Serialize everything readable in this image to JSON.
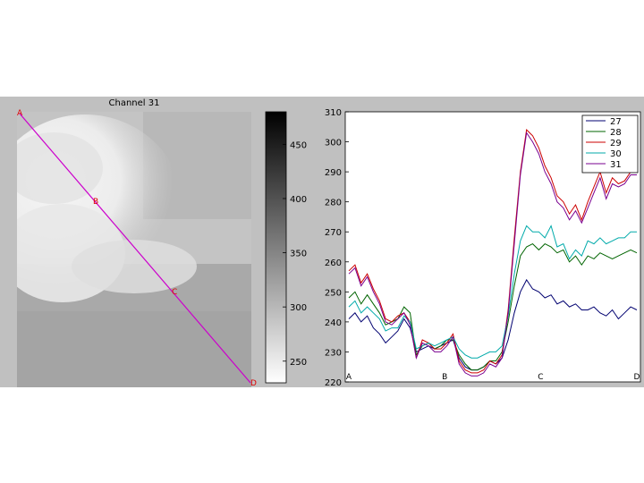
{
  "chart_data": [
    {
      "type": "heatmap",
      "title": "Channel 31",
      "colorbar": {
        "ticks": [
          250,
          300,
          350,
          400,
          450
        ],
        "range": [
          230,
          480
        ],
        "colormap": "gray-reversed"
      },
      "transect_points": [
        "A",
        "B",
        "C",
        "D"
      ],
      "transect_color": "#cc00cc",
      "point_label_color": "#dd0000"
    },
    {
      "type": "line",
      "ylim": [
        220,
        310
      ],
      "yticks": [
        "220",
        "230",
        "240",
        "250",
        "260",
        "270",
        "280",
        "290",
        "300",
        "310"
      ],
      "xticks": [
        "A",
        "B",
        "C",
        "D"
      ],
      "legend_position": "top-right",
      "series": [
        {
          "name": "27",
          "color": "#000070",
          "values": [
            241,
            243,
            240,
            242,
            238,
            236,
            233,
            235,
            237,
            241,
            238,
            230,
            231,
            232,
            231,
            232,
            233,
            234,
            228,
            225,
            224,
            224,
            225,
            227,
            226,
            228,
            234,
            243,
            250,
            254,
            251,
            250,
            248,
            249,
            246,
            247,
            245,
            246,
            244,
            244,
            245,
            243,
            242,
            244,
            241,
            243,
            245,
            244
          ]
        },
        {
          "name": "28",
          "color": "#006400",
          "values": [
            248,
            250,
            246,
            249,
            246,
            243,
            239,
            240,
            241,
            245,
            243,
            229,
            232,
            233,
            231,
            232,
            234,
            234,
            229,
            226,
            224,
            224,
            225,
            227,
            227,
            230,
            240,
            252,
            262,
            265,
            266,
            264,
            266,
            265,
            263,
            264,
            260,
            262,
            259,
            262,
            261,
            263,
            262,
            261,
            262,
            263,
            264,
            263
          ]
        },
        {
          "name": "29",
          "color": "#cc0000",
          "values": [
            257,
            259,
            253,
            256,
            251,
            247,
            241,
            240,
            242,
            243,
            240,
            228,
            234,
            233,
            231,
            231,
            233,
            236,
            227,
            224,
            223,
            223,
            224,
            227,
            226,
            229,
            244,
            268,
            290,
            304,
            302,
            298,
            292,
            288,
            282,
            280,
            276,
            279,
            274,
            280,
            285,
            290,
            283,
            288,
            286,
            287,
            290,
            290
          ]
        },
        {
          "name": "30",
          "color": "#00aaaa",
          "values": [
            245,
            247,
            243,
            245,
            243,
            241,
            237,
            238,
            238,
            242,
            240,
            231,
            232,
            233,
            232,
            233,
            234,
            235,
            231,
            229,
            228,
            228,
            229,
            230,
            230,
            232,
            242,
            256,
            267,
            272,
            270,
            270,
            268,
            272,
            265,
            266,
            261,
            264,
            262,
            267,
            266,
            268,
            266,
            267,
            268,
            268,
            270,
            270
          ]
        },
        {
          "name": "31",
          "color": "#7a0090",
          "values": [
            256,
            258,
            252,
            255,
            250,
            246,
            240,
            239,
            241,
            243,
            239,
            228,
            233,
            232,
            230,
            230,
            232,
            235,
            226,
            223,
            222,
            222,
            223,
            226,
            225,
            228,
            243,
            266,
            289,
            303,
            300,
            296,
            290,
            286,
            280,
            278,
            274,
            277,
            273,
            278,
            283,
            288,
            281,
            286,
            285,
            286,
            289,
            289
          ]
        }
      ]
    }
  ]
}
